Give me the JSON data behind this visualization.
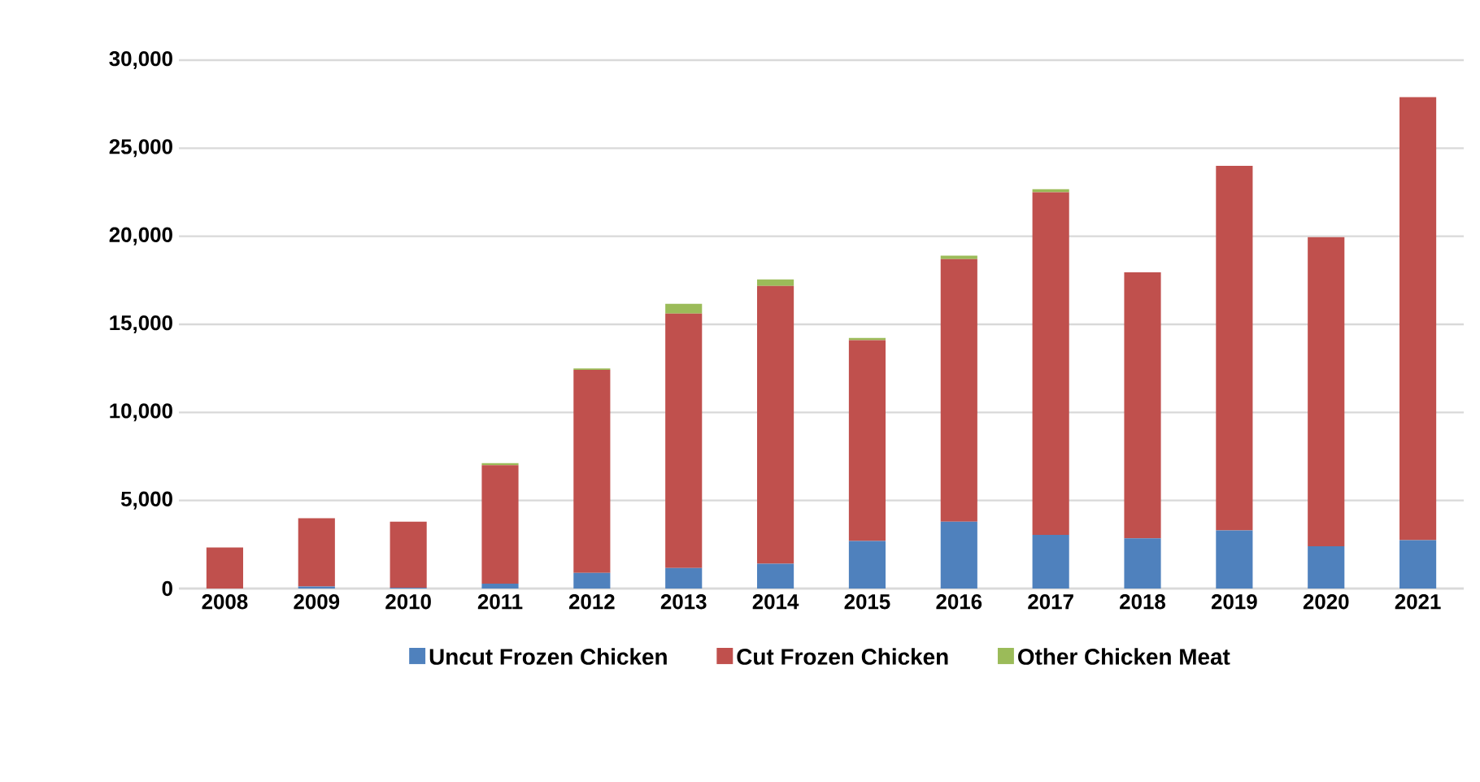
{
  "chart_data": {
    "type": "bar",
    "stacked": true,
    "categories": [
      "2008",
      "2009",
      "2010",
      "2011",
      "2012",
      "2013",
      "2014",
      "2015",
      "2016",
      "2017",
      "2018",
      "2019",
      "2020",
      "2021"
    ],
    "series": [
      {
        "name": "Uncut Frozen Chicken",
        "color": "#4f81bd",
        "values": [
          0,
          120,
          50,
          280,
          890,
          1170,
          1410,
          2700,
          3800,
          3050,
          2850,
          3300,
          2400,
          2750
        ]
      },
      {
        "name": "Cut Frozen Chicken",
        "color": "#c0504d",
        "values": [
          2330,
          3870,
          3750,
          6720,
          11530,
          14440,
          15770,
          11400,
          14900,
          19450,
          15100,
          20700,
          17550,
          25150
        ]
      },
      {
        "name": "Other Chicken Meat",
        "color": "#9bbb59",
        "values": [
          0,
          0,
          0,
          120,
          80,
          560,
          370,
          130,
          200,
          170,
          0,
          0,
          0,
          0
        ]
      }
    ],
    "ylim": [
      0,
      30000
    ],
    "yticks": [
      {
        "value": 0,
        "label": "0"
      },
      {
        "value": 5000,
        "label": "5,000"
      },
      {
        "value": 10000,
        "label": "10,000"
      },
      {
        "value": 15000,
        "label": "15,000"
      },
      {
        "value": 20000,
        "label": "20,000"
      },
      {
        "value": 25000,
        "label": "25,000"
      },
      {
        "value": 30000,
        "label": "30,000"
      }
    ],
    "grid": "y",
    "legend": "bottom"
  }
}
